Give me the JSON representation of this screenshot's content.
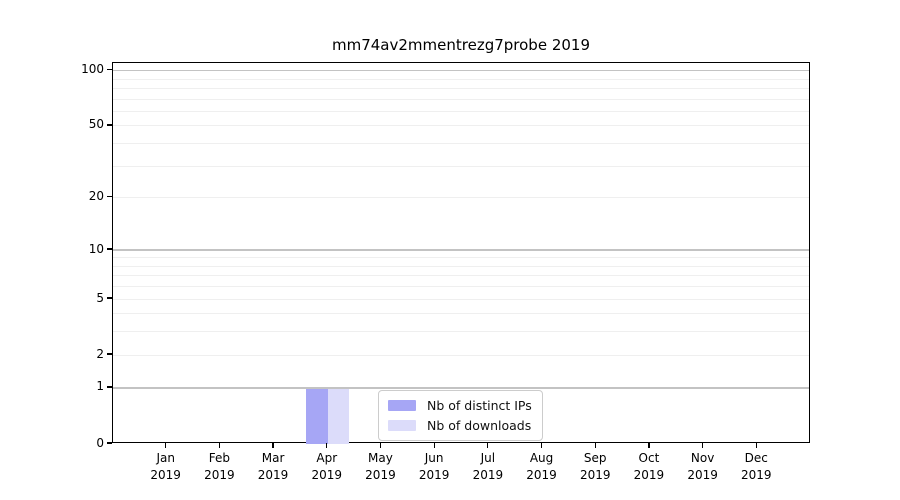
{
  "title": "mm74av2mmentrezg7probe 2019",
  "colors": {
    "distinct_ips": "#a6a6f5",
    "downloads": "#dcdcfa",
    "grid_major": "#c3c3c3",
    "grid_minor": "#efefef",
    "spine": "#000000",
    "background": "#ffffff"
  },
  "legend": {
    "items": [
      {
        "label": "Nb of distinct IPs",
        "color_key": "distinct_ips"
      },
      {
        "label": "Nb of downloads",
        "color_key": "downloads"
      }
    ],
    "position": "lower center"
  },
  "chart_data": {
    "type": "bar",
    "title": "mm74av2mmentrezg7probe 2019",
    "categories": [
      "Jan",
      "Feb",
      "Mar",
      "Apr",
      "May",
      "Jun",
      "Jul",
      "Aug",
      "Sep",
      "Oct",
      "Nov",
      "Dec"
    ],
    "tick_year": "2019",
    "series": [
      {
        "name": "Nb of distinct IPs",
        "color_key": "distinct_ips",
        "values": [
          0,
          0,
          0,
          1,
          0,
          0,
          0,
          0,
          0,
          0,
          0,
          0
        ]
      },
      {
        "name": "Nb of downloads",
        "color_key": "downloads",
        "values": [
          0,
          0,
          0,
          1,
          0,
          0,
          0,
          0,
          0,
          0,
          0,
          0
        ]
      }
    ],
    "xlabel": "",
    "ylabel": "",
    "y_scale": "log10(1+x)",
    "ylim": [
      0,
      110
    ],
    "y_ticks": [
      0,
      1,
      2,
      5,
      10,
      20,
      50,
      100
    ],
    "grid": {
      "major": [
        1,
        10,
        100
      ],
      "minor": [
        2,
        3,
        4,
        5,
        6,
        7,
        8,
        9,
        20,
        30,
        40,
        50,
        60,
        70,
        80,
        90
      ]
    },
    "legend_position": "lower center"
  }
}
